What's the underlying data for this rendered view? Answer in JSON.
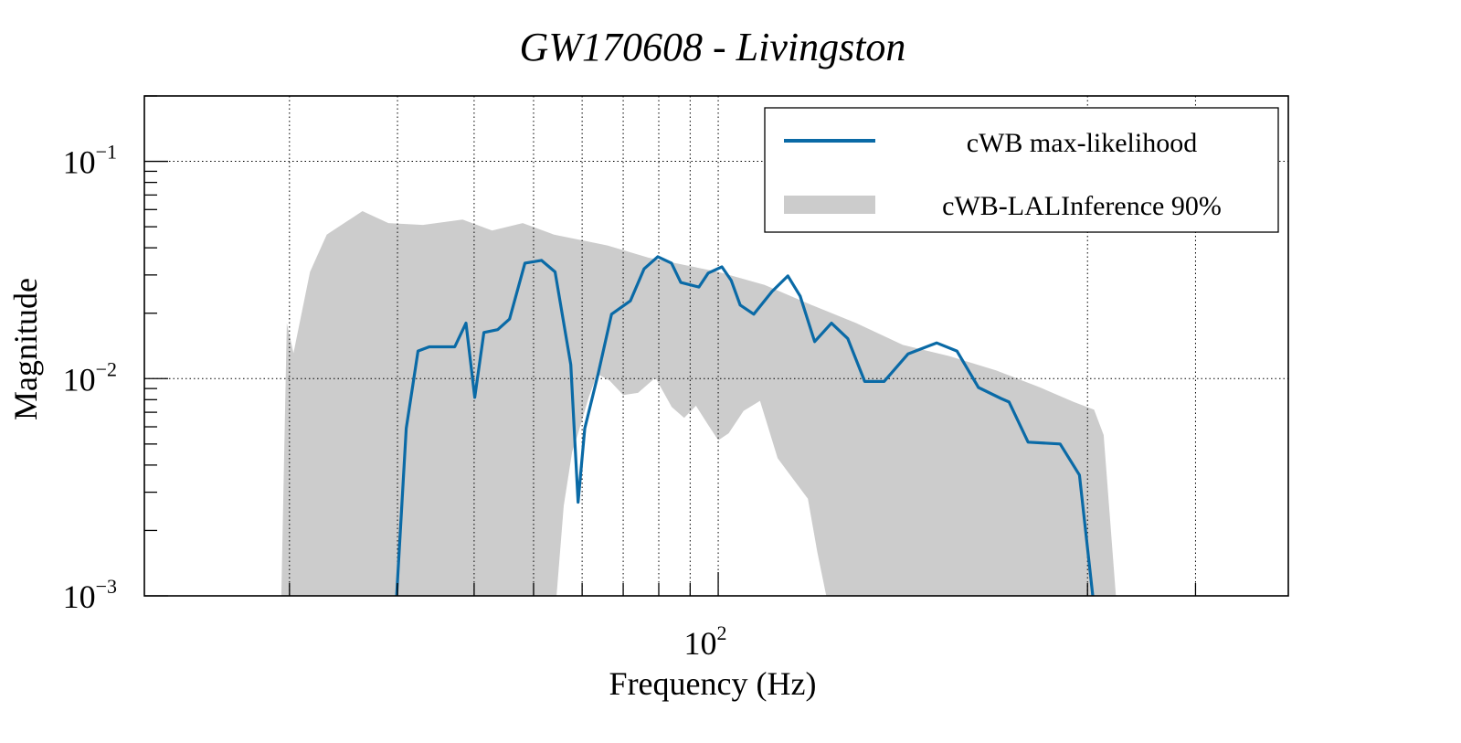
{
  "chart_data": {
    "type": "line",
    "title": "GW170608 - Livingston",
    "xlabel": "Frequency (Hz)",
    "ylabel": "Magnitude",
    "xscale": "log",
    "yscale": "log",
    "xlim": [
      11.6,
      850
    ],
    "ylim": [
      0.001,
      0.2
    ],
    "grid": true,
    "x_tick_labels": [
      {
        "value": 100,
        "base": "10",
        "exp": "2"
      }
    ],
    "y_tick_labels": [
      {
        "value": 0.1,
        "base": "10",
        "exp": "−1"
      },
      {
        "value": 0.01,
        "base": "10",
        "exp": "−2"
      },
      {
        "value": 0.001,
        "base": "10",
        "exp": "−3"
      }
    ],
    "x_grid": [
      20,
      30,
      40,
      50,
      60,
      70,
      80,
      90,
      100,
      400,
      600
    ],
    "legend": {
      "position": "top-right",
      "entries": [
        {
          "label": "cWB max-likelihood",
          "kind": "line",
          "color": "#0a6aa6"
        },
        {
          "label": "cWB-LALInference 90%",
          "kind": "band",
          "color": "#cccccc"
        }
      ]
    },
    "series": [
      {
        "name": "cWB max-likelihood",
        "color": "#0a6aa6",
        "x": [
          29.9,
          31.0,
          32.4,
          33.8,
          37.2,
          38.8,
          40.1,
          41.5,
          43.7,
          45.7,
          48.4,
          51.5,
          54.2,
          57.5,
          59.1,
          60.6,
          63.7,
          67.0,
          71.9,
          75.7,
          79.7,
          83.9,
          86.9,
          93.0,
          96.3,
          101.4,
          105.0,
          108.6,
          114.3,
          122.4,
          129.9,
          136.0,
          143.6,
          153.0,
          162.6,
          173.3,
          186.4,
          204.0,
          227.0,
          245.0,
          265.6,
          289.0,
          298.0,
          320.0,
          361.0,
          388.0,
          408.0
        ],
        "y": [
          0.001,
          0.0059,
          0.0134,
          0.014,
          0.014,
          0.018,
          0.0082,
          0.0163,
          0.0168,
          0.0188,
          0.034,
          0.035,
          0.031,
          0.0116,
          0.0027,
          0.0059,
          0.0105,
          0.0198,
          0.0228,
          0.032,
          0.0364,
          0.034,
          0.0277,
          0.0264,
          0.0306,
          0.0327,
          0.0283,
          0.0218,
          0.0198,
          0.0252,
          0.0297,
          0.024,
          0.0148,
          0.018,
          0.0153,
          0.0097,
          0.0097,
          0.013,
          0.0146,
          0.0134,
          0.0091,
          0.0081,
          0.0078,
          0.0051,
          0.005,
          0.0036,
          0.001
        ]
      },
      {
        "name": "cWB-LALInference 90%",
        "color": "#cccccc",
        "kind": "band",
        "upper": {
          "x": [
            19.4,
            19.8,
            20.3,
            21.6,
            23.0,
            26.3,
            29.0,
            33.0,
            38.3,
            42.8,
            48.0,
            54.0,
            66.0,
            77.0,
            100.0,
            119.0,
            141.0,
            168.0,
            200.0,
            238.0,
            284.0,
            335.0,
            380.0,
            410.0,
            425.0,
            445.0
          ],
          "y": [
            0.001,
            0.018,
            0.0131,
            0.031,
            0.046,
            0.059,
            0.052,
            0.051,
            0.054,
            0.048,
            0.052,
            0.046,
            0.041,
            0.036,
            0.031,
            0.027,
            0.022,
            0.018,
            0.0143,
            0.0127,
            0.0109,
            0.0091,
            0.0078,
            0.0072,
            0.0055,
            0.001
          ]
        },
        "lower": {
          "x": [
            19.4,
            54.5,
            56.0,
            57.8,
            59.0,
            61.5,
            63.5,
            66.5,
            70.0,
            74.0,
            79.0,
            84.0,
            88.0,
            92.0,
            96.0,
            100.0,
            104.0,
            110.0,
            117.0,
            125.0,
            132.0,
            140.0,
            145.0,
            150.0,
            445.0
          ],
          "y": [
            0.001,
            0.001,
            0.0026,
            0.0046,
            0.0055,
            0.0082,
            0.0105,
            0.0098,
            0.0084,
            0.0086,
            0.0101,
            0.0074,
            0.0066,
            0.0075,
            0.0062,
            0.0052,
            0.0056,
            0.0071,
            0.0079,
            0.0043,
            0.0035,
            0.0028,
            0.0016,
            0.001,
            0.001
          ]
        }
      }
    ]
  }
}
